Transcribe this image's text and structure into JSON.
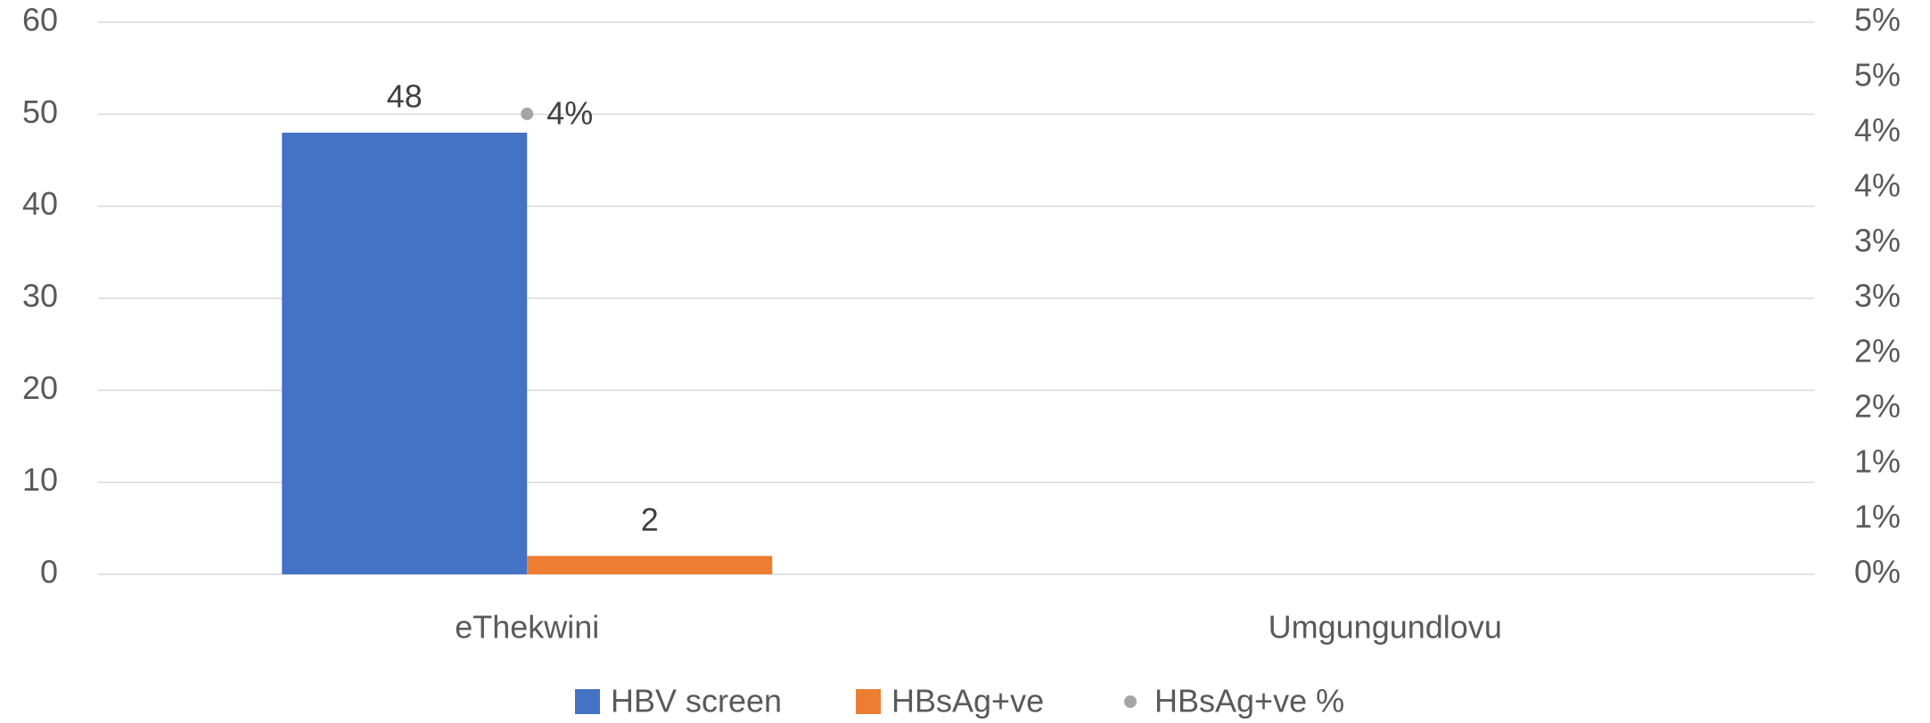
{
  "chart_data": {
    "type": "bar",
    "categories": [
      "eThekwini",
      "Umgungundlovu"
    ],
    "series": [
      {
        "name": "HBV screen",
        "color": "#4472c4",
        "values": [
          48,
          null
        ]
      },
      {
        "name": "HBsAg+ve",
        "color": "#ed7d31",
        "values": [
          2,
          null
        ]
      },
      {
        "name": "HBsAg+ve %",
        "color": "#a5a5a5",
        "type": "scatter",
        "axis": "y2",
        "values": [
          4.17,
          null
        ],
        "value_labels": [
          "4%",
          null
        ]
      }
    ],
    "ylim": [
      0,
      60
    ],
    "yticks": [
      0,
      10,
      20,
      30,
      40,
      50,
      60
    ],
    "y2lim": [
      0,
      5
    ],
    "y2ticks": [
      {
        "value": 0,
        "label": "0%"
      },
      {
        "value": 0.5,
        "label": "1%"
      },
      {
        "value": 1,
        "label": "1%"
      },
      {
        "value": 1.5,
        "label": "2%"
      },
      {
        "value": 2,
        "label": "2%"
      },
      {
        "value": 2.5,
        "label": "3%"
      },
      {
        "value": 3,
        "label": "3%"
      },
      {
        "value": 3.5,
        "label": "4%"
      },
      {
        "value": 4,
        "label": "4%"
      },
      {
        "value": 4.5,
        "label": "5%"
      },
      {
        "value": 5,
        "label": "5%"
      }
    ],
    "grid": true,
    "legend": "bottom"
  }
}
